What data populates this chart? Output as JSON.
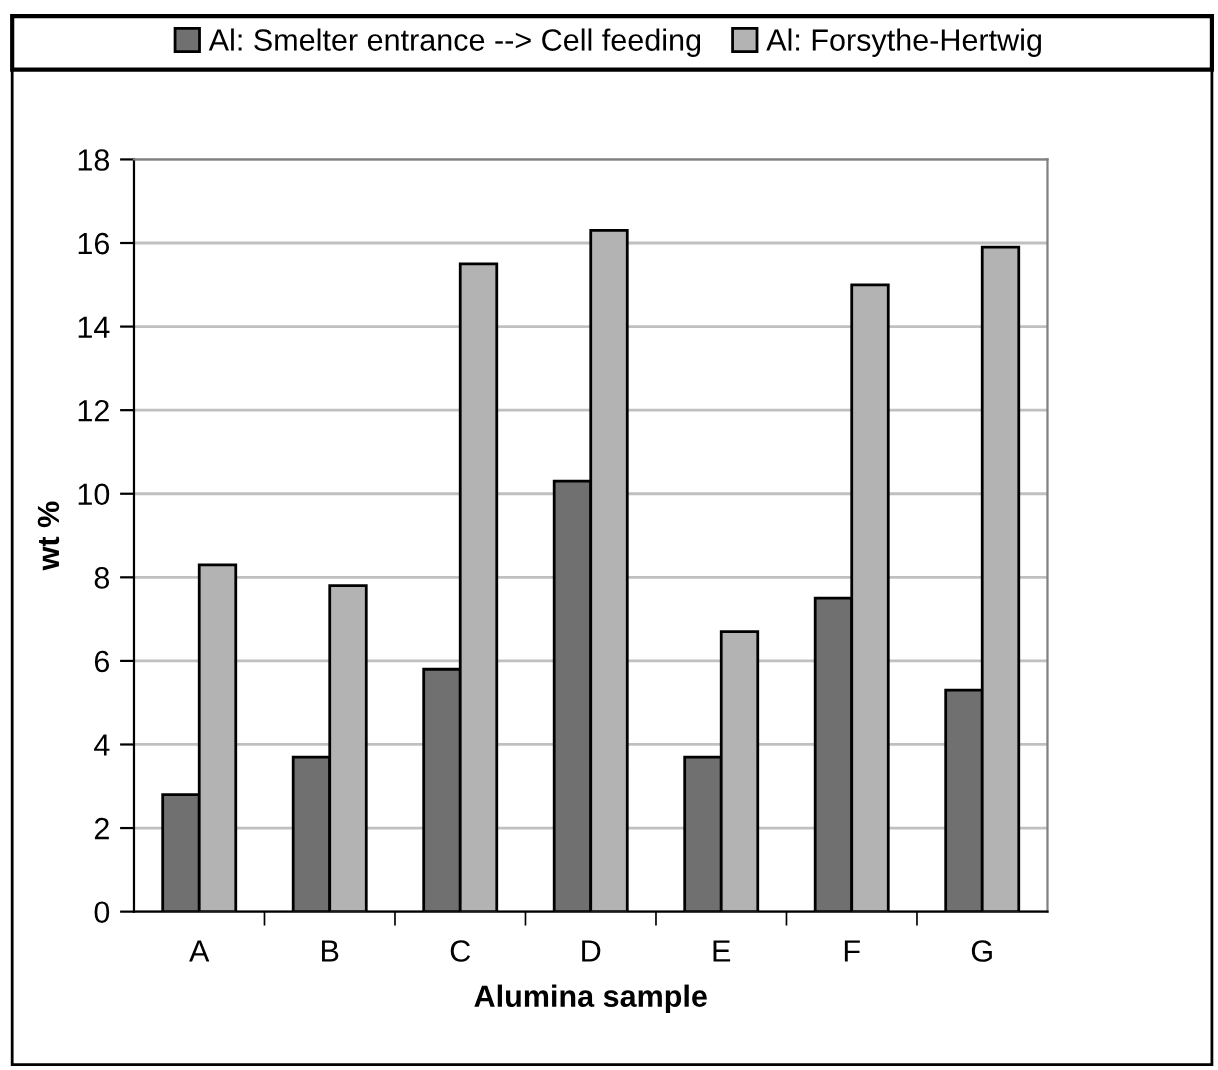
{
  "chart_data": {
    "type": "bar",
    "xlabel": "Alumina sample",
    "ylabel": "wt %",
    "categories": [
      "A",
      "B",
      "C",
      "D",
      "E",
      "F",
      "G"
    ],
    "series": [
      {
        "name": "Al: Smelter entrance --> Cell feeding",
        "color": "#707070",
        "values": [
          2.8,
          3.7,
          5.8,
          10.3,
          3.7,
          7.5,
          5.3
        ]
      },
      {
        "name": "Al: Forsythe-Hertwig",
        "color": "#b3b3b3",
        "values": [
          8.3,
          7.8,
          15.5,
          16.3,
          6.7,
          15.0,
          15.9
        ]
      }
    ],
    "ylim": [
      0,
      18
    ],
    "yticks": [
      0,
      2,
      4,
      6,
      8,
      10,
      12,
      14,
      16,
      18
    ],
    "grid": "y",
    "legend": "top"
  }
}
